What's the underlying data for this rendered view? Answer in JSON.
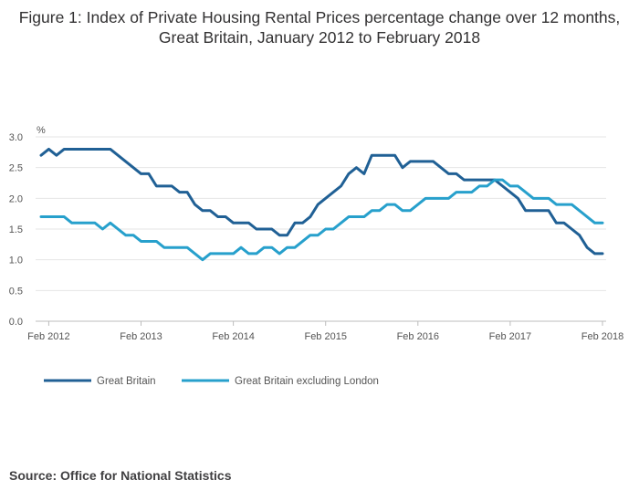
{
  "title": "Figure 1: Index of Private Housing Rental Prices percentage change over 12 months, Great Britain, January 2012 to February 2018",
  "source": "Source: Office for National Statistics",
  "chart_data": {
    "type": "line",
    "title": "Figure 1: Index of Private Housing Rental Prices percentage change over 12 months, Great Britain, January 2012 to February 2018",
    "unit_label": "%",
    "ylim": [
      0,
      3
    ],
    "yticks": [
      "0.0",
      "0.5",
      "1.0",
      "1.5",
      "2.0",
      "2.5",
      "3.0"
    ],
    "xticks": [
      "Feb 2012",
      "Feb 2013",
      "Feb 2014",
      "Feb 2015",
      "Feb 2016",
      "Feb 2017",
      "Feb 2018"
    ],
    "x_start": "Jan 2012",
    "x_end": "Feb 2018",
    "grid": true,
    "legend_position": "bottom-left",
    "series": [
      {
        "name": "Great Britain",
        "color": "#206095",
        "values": [
          2.7,
          2.8,
          2.7,
          2.8,
          2.8,
          2.8,
          2.8,
          2.8,
          2.8,
          2.8,
          2.7,
          2.6,
          2.5,
          2.4,
          2.4,
          2.2,
          2.2,
          2.2,
          2.1,
          2.1,
          1.9,
          1.8,
          1.8,
          1.7,
          1.7,
          1.6,
          1.6,
          1.6,
          1.5,
          1.5,
          1.5,
          1.4,
          1.4,
          1.6,
          1.6,
          1.7,
          1.9,
          2.0,
          2.1,
          2.2,
          2.4,
          2.5,
          2.4,
          2.7,
          2.7,
          2.7,
          2.7,
          2.5,
          2.6,
          2.6,
          2.6,
          2.6,
          2.5,
          2.4,
          2.4,
          2.3,
          2.3,
          2.3,
          2.3,
          2.3,
          2.2,
          2.1,
          2.0,
          1.8,
          1.8,
          1.8,
          1.8,
          1.6,
          1.6,
          1.5,
          1.4,
          1.2,
          1.1,
          1.1
        ]
      },
      {
        "name": "Great Britain excluding London",
        "color": "#27A0CC",
        "values": [
          1.7,
          1.7,
          1.7,
          1.7,
          1.6,
          1.6,
          1.6,
          1.6,
          1.5,
          1.6,
          1.5,
          1.4,
          1.4,
          1.3,
          1.3,
          1.3,
          1.2,
          1.2,
          1.2,
          1.2,
          1.1,
          1.0,
          1.1,
          1.1,
          1.1,
          1.1,
          1.2,
          1.1,
          1.1,
          1.2,
          1.2,
          1.1,
          1.2,
          1.2,
          1.3,
          1.4,
          1.4,
          1.5,
          1.5,
          1.6,
          1.7,
          1.7,
          1.7,
          1.8,
          1.8,
          1.9,
          1.9,
          1.8,
          1.8,
          1.9,
          2.0,
          2.0,
          2.0,
          2.0,
          2.1,
          2.1,
          2.1,
          2.2,
          2.2,
          2.3,
          2.3,
          2.2,
          2.2,
          2.1,
          2.0,
          2.0,
          2.0,
          1.9,
          1.9,
          1.9,
          1.8,
          1.7,
          1.6,
          1.6
        ]
      }
    ]
  }
}
